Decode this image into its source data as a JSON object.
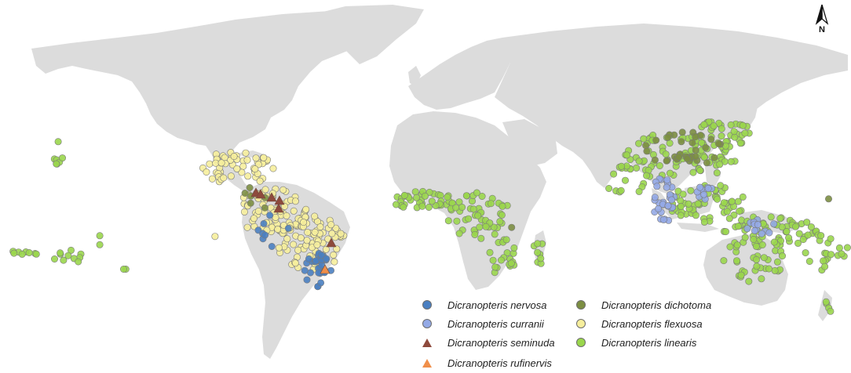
{
  "map": {
    "north_arrow": {
      "label": "N",
      "icon": "north-arrow-icon"
    },
    "colors": {
      "land": "#dcdcdc",
      "nervosa": "#4a7fc1",
      "curranii": "#93a9e6",
      "seminuda": "#8e4a3c",
      "rufinervis": "#f08f4a",
      "dichotoma": "#7c8e42",
      "flexuosa": "#f6ee9c",
      "linearis": "#9ad64c"
    }
  },
  "legend": {
    "items": [
      {
        "key": "nervosa",
        "label": "Dicranopteris nervosa",
        "symbol": "circle",
        "color": "#4a7fc1"
      },
      {
        "key": "curranii",
        "label": "Dicranopteris curranii",
        "symbol": "circle",
        "color": "#93a9e6"
      },
      {
        "key": "seminuda",
        "label": "Dicranopteris seminuda",
        "symbol": "triangle",
        "color": "#8e4a3c"
      },
      {
        "key": "rufinervis",
        "label": "Dicranopteris rufinervis",
        "symbol": "triangle",
        "color": "#f08f4a"
      },
      {
        "key": "dichotoma",
        "label": "Dicranopteris dichotoma",
        "symbol": "circle",
        "color": "#7c8e42"
      },
      {
        "key": "flexuosa",
        "label": "Dicranopteris flexuosa",
        "symbol": "circle",
        "color": "#f6ee9c"
      },
      {
        "key": "linearis",
        "label": "Dicranopteris linearis",
        "symbol": "circle",
        "color": "#9ad64c"
      }
    ]
  }
}
